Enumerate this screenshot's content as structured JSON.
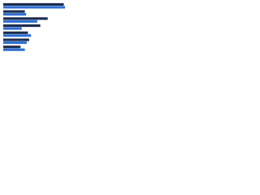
{
  "chart_data": {
    "type": "hbar",
    "categories": [
      null,
      null,
      null,
      null,
      null,
      null,
      null
    ],
    "series": [
      {
        "color": "#1b2c4f",
        "values": [
          98,
          35,
          72,
          60,
          40,
          42,
          28
        ]
      },
      {
        "color": "#2f6fd3",
        "values": [
          100,
          37,
          55,
          30,
          45,
          38,
          35
        ]
      }
    ],
    "xlim": [
      0,
      100
    ]
  }
}
